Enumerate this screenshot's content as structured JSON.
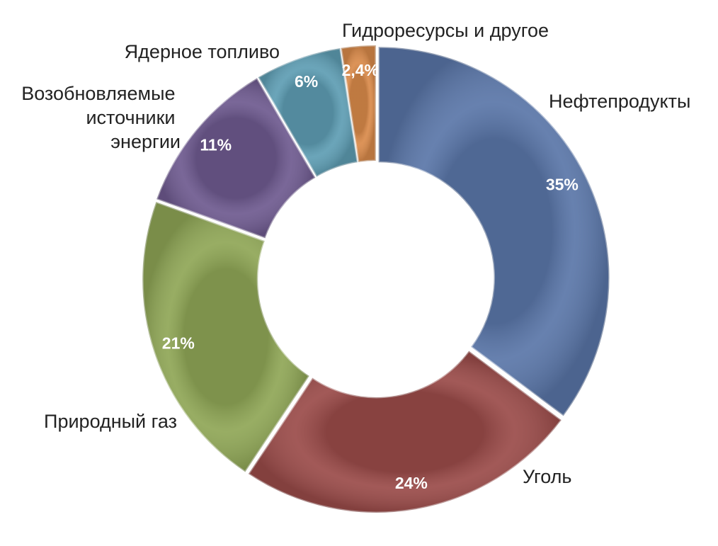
{
  "chart_data": {
    "type": "donut",
    "categories": [
      "Нефтепродукты",
      "Уголь",
      "Природный газ",
      "Возобновляемые источники энергии",
      "Ядерное топливо",
      "Гидроресурсы и другое"
    ],
    "values": [
      35,
      24,
      21,
      11,
      6,
      2.4
    ],
    "value_labels": [
      "35%",
      "24%",
      "21%",
      "11%",
      "6%",
      "2,4%"
    ],
    "colors": [
      "#5a76a8",
      "#9a4b49",
      "#8fa656",
      "#6e5a8f",
      "#5e9db3",
      "#d98a4a"
    ]
  }
}
